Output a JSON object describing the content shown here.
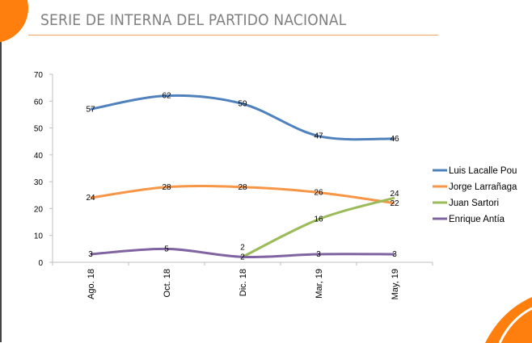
{
  "title": "SERIE DE INTERNA DEL PARTIDO NACIONAL",
  "colors": {
    "accent": "#ff7f0e"
  },
  "chart_data": {
    "type": "line",
    "title": "",
    "xlabel": "",
    "ylabel": "",
    "categories": [
      "Ago. 18",
      "Oct. 18",
      "Dic. 18",
      "Mar, 19",
      "May, 19"
    ],
    "ylim": [
      0,
      70
    ],
    "yticks": [
      0,
      10,
      20,
      30,
      40,
      50,
      60,
      70
    ],
    "grid": false,
    "legend": "right",
    "smooth": true,
    "series": [
      {
        "name": "Luis Lacalle Pou",
        "color": "#4f81bd",
        "values": [
          57,
          62,
          59,
          47,
          46
        ]
      },
      {
        "name": "Jorge Larrañaga",
        "color": "#f79646",
        "values": [
          24,
          28,
          28,
          26,
          22
        ]
      },
      {
        "name": "Juan Sartori",
        "color": "#9bbb59",
        "values": [
          null,
          null,
          2,
          16,
          24
        ]
      },
      {
        "name": "Enrique Antía",
        "color": "#8064a2",
        "values": [
          3,
          5,
          2,
          3,
          3
        ]
      }
    ]
  }
}
